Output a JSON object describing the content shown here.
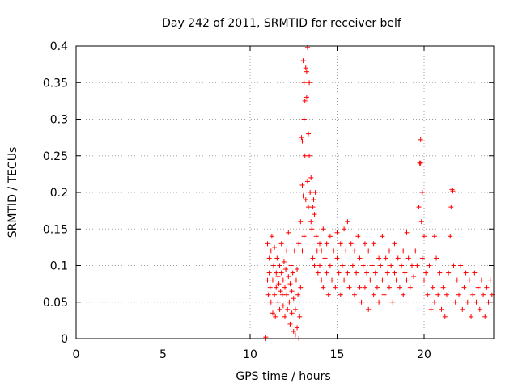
{
  "chart_data": {
    "type": "scatter",
    "title": "Day 242 of 2011, SRMTID for receiver belf",
    "xlabel": "GPS time / hours",
    "ylabel": "SRMTID / TECUs",
    "xlim": [
      0,
      24
    ],
    "ylim": [
      0,
      0.4
    ],
    "x_ticks": [
      0,
      5,
      10,
      15,
      20
    ],
    "x_tick_labels": [
      "0",
      "5",
      "10",
      "15",
      "20"
    ],
    "y_ticks": [
      0,
      0.05,
      0.1,
      0.15,
      0.2,
      0.25,
      0.3,
      0.35,
      0.4
    ],
    "y_tick_labels": [
      "0",
      "0.05",
      "0.1",
      "0.15",
      "0.2",
      "0.25",
      "0.3",
      "0.35",
      "0.4"
    ],
    "grid": true,
    "marker": "plus",
    "color": "#ff0000",
    "series": [
      {
        "name": "SRMTID",
        "points": [
          [
            10.9,
            0.0
          ],
          [
            10.9,
            0.002
          ],
          [
            11.0,
            0.13
          ],
          [
            11.0,
            0.08
          ],
          [
            11.05,
            0.06
          ],
          [
            11.1,
            0.09
          ],
          [
            11.1,
            0.11
          ],
          [
            11.15,
            0.07
          ],
          [
            11.2,
            0.12
          ],
          [
            11.2,
            0.05
          ],
          [
            11.25,
            0.14
          ],
          [
            11.3,
            0.08
          ],
          [
            11.3,
            0.035
          ],
          [
            11.35,
            0.1
          ],
          [
            11.4,
            0.06
          ],
          [
            11.4,
            0.125
          ],
          [
            11.45,
            0.03
          ],
          [
            11.5,
            0.09
          ],
          [
            11.5,
            0.07
          ],
          [
            11.55,
            0.11
          ],
          [
            11.6,
            0.05
          ],
          [
            11.6,
            0.085
          ],
          [
            11.65,
            0.075
          ],
          [
            11.7,
            0.1
          ],
          [
            11.7,
            0.04
          ],
          [
            11.75,
            0.065
          ],
          [
            11.8,
            0.09
          ],
          [
            11.8,
            0.13
          ],
          [
            11.85,
            0.06
          ],
          [
            11.9,
            0.08
          ],
          [
            11.9,
            0.045
          ],
          [
            11.95,
            0.105
          ],
          [
            12.0,
            0.07
          ],
          [
            12.0,
            0.03
          ],
          [
            12.05,
            0.095
          ],
          [
            12.1,
            0.06
          ],
          [
            12.1,
            0.12
          ],
          [
            12.15,
            0.04
          ],
          [
            12.2,
            0.085
          ],
          [
            12.2,
            0.145
          ],
          [
            12.25,
            0.05
          ],
          [
            12.3,
            0.075
          ],
          [
            12.3,
            0.02
          ],
          [
            12.35,
            0.1
          ],
          [
            12.4,
            0.065
          ],
          [
            12.4,
            0.035
          ],
          [
            12.45,
            0.09
          ],
          [
            12.5,
            0.01
          ],
          [
            12.5,
            0.055
          ],
          [
            12.55,
            0.12
          ],
          [
            12.6,
            0.005
          ],
          [
            12.6,
            0.04
          ],
          [
            12.65,
            0.08
          ],
          [
            12.7,
            0.015
          ],
          [
            12.7,
            0.095
          ],
          [
            12.75,
            0.06
          ],
          [
            12.8,
            0.0
          ],
          [
            12.8,
            0.13
          ],
          [
            12.85,
            0.03
          ],
          [
            12.9,
            0.07
          ],
          [
            12.9,
            0.16
          ],
          [
            12.95,
            0.275
          ],
          [
            13.0,
            0.21
          ],
          [
            13.0,
            0.12
          ],
          [
            13.0,
            0.27
          ],
          [
            13.05,
            0.38
          ],
          [
            13.05,
            0.195
          ],
          [
            13.1,
            0.3
          ],
          [
            13.1,
            0.35
          ],
          [
            13.1,
            0.14
          ],
          [
            13.15,
            0.325
          ],
          [
            13.15,
            0.25
          ],
          [
            13.2,
            0.37
          ],
          [
            13.2,
            0.19
          ],
          [
            13.25,
            0.33
          ],
          [
            13.25,
            0.365
          ],
          [
            13.3,
            0.398
          ],
          [
            13.3,
            0.215
          ],
          [
            13.35,
            0.28
          ],
          [
            13.35,
            0.18
          ],
          [
            13.4,
            0.35
          ],
          [
            13.4,
            0.25
          ],
          [
            13.45,
            0.2
          ],
          [
            13.5,
            0.16
          ],
          [
            13.5,
            0.22
          ],
          [
            13.55,
            0.15
          ],
          [
            13.6,
            0.18
          ],
          [
            13.6,
            0.11
          ],
          [
            13.65,
            0.19
          ],
          [
            13.7,
            0.17
          ],
          [
            13.7,
            0.1
          ],
          [
            13.75,
            0.2
          ],
          [
            13.8,
            0.14
          ],
          [
            13.85,
            0.12
          ],
          [
            13.9,
            0.09
          ],
          [
            14.0,
            0.13
          ],
          [
            14.0,
            0.1
          ],
          [
            14.1,
            0.08
          ],
          [
            14.1,
            0.12
          ],
          [
            14.2,
            0.15
          ],
          [
            14.2,
            0.07
          ],
          [
            14.3,
            0.11
          ],
          [
            14.4,
            0.09
          ],
          [
            14.4,
            0.13
          ],
          [
            14.5,
            0.06
          ],
          [
            14.6,
            0.1
          ],
          [
            14.6,
            0.14
          ],
          [
            14.7,
            0.08
          ],
          [
            14.8,
            0.12
          ],
          [
            14.9,
            0.07
          ],
          [
            15.0,
            0.11
          ],
          [
            15.0,
            0.145
          ],
          [
            15.1,
            0.09
          ],
          [
            15.2,
            0.13
          ],
          [
            15.2,
            0.06
          ],
          [
            15.3,
            0.1
          ],
          [
            15.4,
            0.15
          ],
          [
            15.4,
            0.08
          ],
          [
            15.5,
            0.12
          ],
          [
            15.6,
            0.09
          ],
          [
            15.6,
            0.16
          ],
          [
            15.7,
            0.07
          ],
          [
            15.8,
            0.13
          ],
          [
            15.9,
            0.1
          ],
          [
            16.0,
            0.06
          ],
          [
            16.0,
            0.12
          ],
          [
            16.1,
            0.09
          ],
          [
            16.2,
            0.14
          ],
          [
            16.3,
            0.07
          ],
          [
            16.3,
            0.11
          ],
          [
            16.4,
            0.05
          ],
          [
            16.5,
            0.1
          ],
          [
            16.6,
            0.13
          ],
          [
            16.6,
            0.07
          ],
          [
            16.7,
            0.09
          ],
          [
            16.8,
            0.04
          ],
          [
            16.8,
            0.12
          ],
          [
            16.9,
            0.08
          ],
          [
            17.0,
            0.1
          ],
          [
            17.1,
            0.06
          ],
          [
            17.1,
            0.13
          ],
          [
            17.2,
            0.09
          ],
          [
            17.3,
            0.07
          ],
          [
            17.4,
            0.11
          ],
          [
            17.4,
            0.05
          ],
          [
            17.5,
            0.1
          ],
          [
            17.6,
            0.08
          ],
          [
            17.6,
            0.14
          ],
          [
            17.7,
            0.06
          ],
          [
            17.8,
            0.11
          ],
          [
            17.9,
            0.09
          ],
          [
            18.0,
            0.07
          ],
          [
            18.0,
            0.12
          ],
          [
            18.1,
            0.1
          ],
          [
            18.2,
            0.05
          ],
          [
            18.3,
            0.09
          ],
          [
            18.3,
            0.13
          ],
          [
            18.4,
            0.08
          ],
          [
            18.5,
            0.11
          ],
          [
            18.6,
            0.07
          ],
          [
            18.7,
            0.1
          ],
          [
            18.8,
            0.12
          ],
          [
            18.8,
            0.06
          ],
          [
            18.9,
            0.09
          ],
          [
            19.0,
            0.145
          ],
          [
            19.0,
            0.08
          ],
          [
            19.1,
            0.11
          ],
          [
            19.2,
            0.07
          ],
          [
            19.3,
            0.1
          ],
          [
            19.4,
            0.085
          ],
          [
            19.5,
            0.12
          ],
          [
            19.6,
            0.1
          ],
          [
            19.7,
            0.18
          ],
          [
            19.75,
            0.24
          ],
          [
            19.8,
            0.272
          ],
          [
            19.8,
            0.24
          ],
          [
            19.85,
            0.16
          ],
          [
            19.9,
            0.2
          ],
          [
            19.9,
            0.11
          ],
          [
            20.0,
            0.14
          ],
          [
            20.0,
            0.08
          ],
          [
            20.1,
            0.09
          ],
          [
            20.2,
            0.06
          ],
          [
            20.3,
            0.1
          ],
          [
            20.4,
            0.04
          ],
          [
            20.5,
            0.07
          ],
          [
            20.6,
            0.14
          ],
          [
            20.6,
            0.05
          ],
          [
            20.7,
            0.11
          ],
          [
            20.8,
            0.06
          ],
          [
            20.9,
            0.09
          ],
          [
            21.0,
            0.04
          ],
          [
            21.1,
            0.07
          ],
          [
            21.2,
            0.03
          ],
          [
            21.3,
            0.06
          ],
          [
            21.4,
            0.09
          ],
          [
            21.5,
            0.14
          ],
          [
            21.55,
            0.18
          ],
          [
            21.6,
            0.204
          ],
          [
            21.65,
            0.202
          ],
          [
            21.7,
            0.1
          ],
          [
            21.8,
            0.05
          ],
          [
            21.9,
            0.08
          ],
          [
            22.0,
            0.06
          ],
          [
            22.1,
            0.1
          ],
          [
            22.2,
            0.04
          ],
          [
            22.3,
            0.07
          ],
          [
            22.4,
            0.09
          ],
          [
            22.5,
            0.05
          ],
          [
            22.6,
            0.08
          ],
          [
            22.7,
            0.03
          ],
          [
            22.8,
            0.06
          ],
          [
            22.9,
            0.09
          ],
          [
            23.0,
            0.05
          ],
          [
            23.1,
            0.07
          ],
          [
            23.2,
            0.04
          ],
          [
            23.3,
            0.08
          ],
          [
            23.4,
            0.06
          ],
          [
            23.5,
            0.03
          ],
          [
            23.6,
            0.07
          ],
          [
            23.7,
            0.05
          ],
          [
            23.8,
            0.08
          ],
          [
            23.9,
            0.06
          ]
        ]
      }
    ]
  }
}
